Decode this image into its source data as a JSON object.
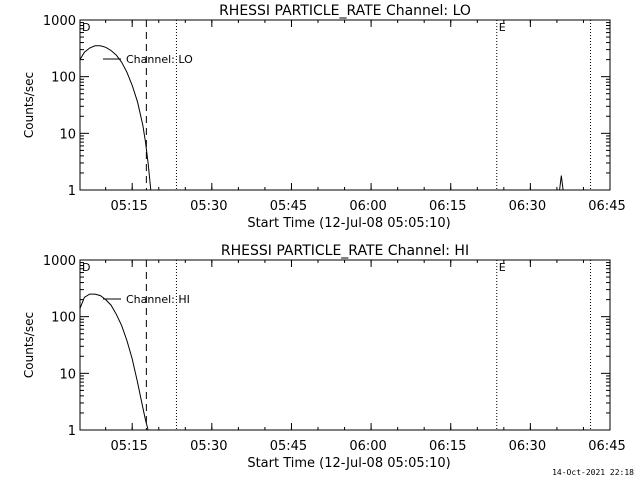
{
  "chart_data": [
    {
      "type": "line",
      "title": "RHESSI PARTICLE_RATE Channel: LO",
      "xlabel": "Start Time (12-Jul-08 05:05:10)",
      "ylabel": "Counts/sec",
      "yscale": "log",
      "ylim": [
        1,
        1000
      ],
      "yticks": [
        "1",
        "10",
        "100",
        "1000"
      ],
      "xlim": [
        "05:05:10",
        "06:45:00"
      ],
      "xticks": [
        "05:15",
        "05:30",
        "05:45",
        "06:00",
        "06:15",
        "06:30",
        "06:45"
      ],
      "grid": false,
      "series": [
        {
          "name": "Channel: LO",
          "x": [
            "05:05:10",
            "05:06:00",
            "05:07:00",
            "05:08:00",
            "05:09:00",
            "05:10:00",
            "05:11:00",
            "05:12:00",
            "05:13:00",
            "05:14:00",
            "05:15:00",
            "05:16:00",
            "05:17:00",
            "05:17:30",
            "05:18:00",
            "05:18:30"
          ],
          "y": [
            200,
            270,
            320,
            350,
            350,
            330,
            290,
            240,
            180,
            120,
            70,
            36,
            14,
            7,
            3,
            1
          ]
        },
        {
          "name": "",
          "x": [
            "06:35:30",
            "06:35:50",
            "06:36:10"
          ],
          "y": [
            1,
            1.8,
            1
          ]
        }
      ],
      "markers": [
        {
          "time": "05:17:40",
          "style": "dashed",
          "label": ""
        },
        {
          "time": "05:23:20",
          "style": "dotted",
          "label": ""
        },
        {
          "time": "06:23:40",
          "style": "dotted",
          "label": "E"
        },
        {
          "time": "06:41:20",
          "style": "dotted",
          "label": ""
        }
      ],
      "corner_label": "D",
      "legend_position": "top-left"
    },
    {
      "type": "line",
      "title": "RHESSI PARTICLE_RATE Channel: HI",
      "xlabel": "Start Time (12-Jul-08 05:05:10)",
      "ylabel": "Counts/sec",
      "yscale": "log",
      "ylim": [
        1,
        1000
      ],
      "yticks": [
        "1",
        "10",
        "100",
        "1000"
      ],
      "xlim": [
        "05:05:10",
        "06:45:00"
      ],
      "xticks": [
        "05:15",
        "05:30",
        "05:45",
        "06:00",
        "06:15",
        "06:30",
        "06:45"
      ],
      "grid": false,
      "series": [
        {
          "name": "Channel: HI",
          "x": [
            "05:05:10",
            "05:06:00",
            "05:07:00",
            "05:08:00",
            "05:09:00",
            "05:10:00",
            "05:11:00",
            "05:12:00",
            "05:13:00",
            "05:14:00",
            "05:15:00",
            "05:16:00",
            "05:17:00",
            "05:17:30",
            "05:18:00"
          ],
          "y": [
            140,
            220,
            250,
            250,
            235,
            200,
            160,
            110,
            70,
            38,
            18,
            7,
            2.5,
            1.5,
            1
          ]
        }
      ],
      "markers": [
        {
          "time": "05:17:40",
          "style": "dashed",
          "label": ""
        },
        {
          "time": "05:23:20",
          "style": "dotted",
          "label": ""
        },
        {
          "time": "06:23:40",
          "style": "dotted",
          "label": "E"
        },
        {
          "time": "06:41:20",
          "style": "dotted",
          "label": ""
        }
      ],
      "corner_label": "D",
      "legend_position": "top-left"
    }
  ],
  "footer": {
    "timestamp": "14-Oct-2021 22:18"
  }
}
